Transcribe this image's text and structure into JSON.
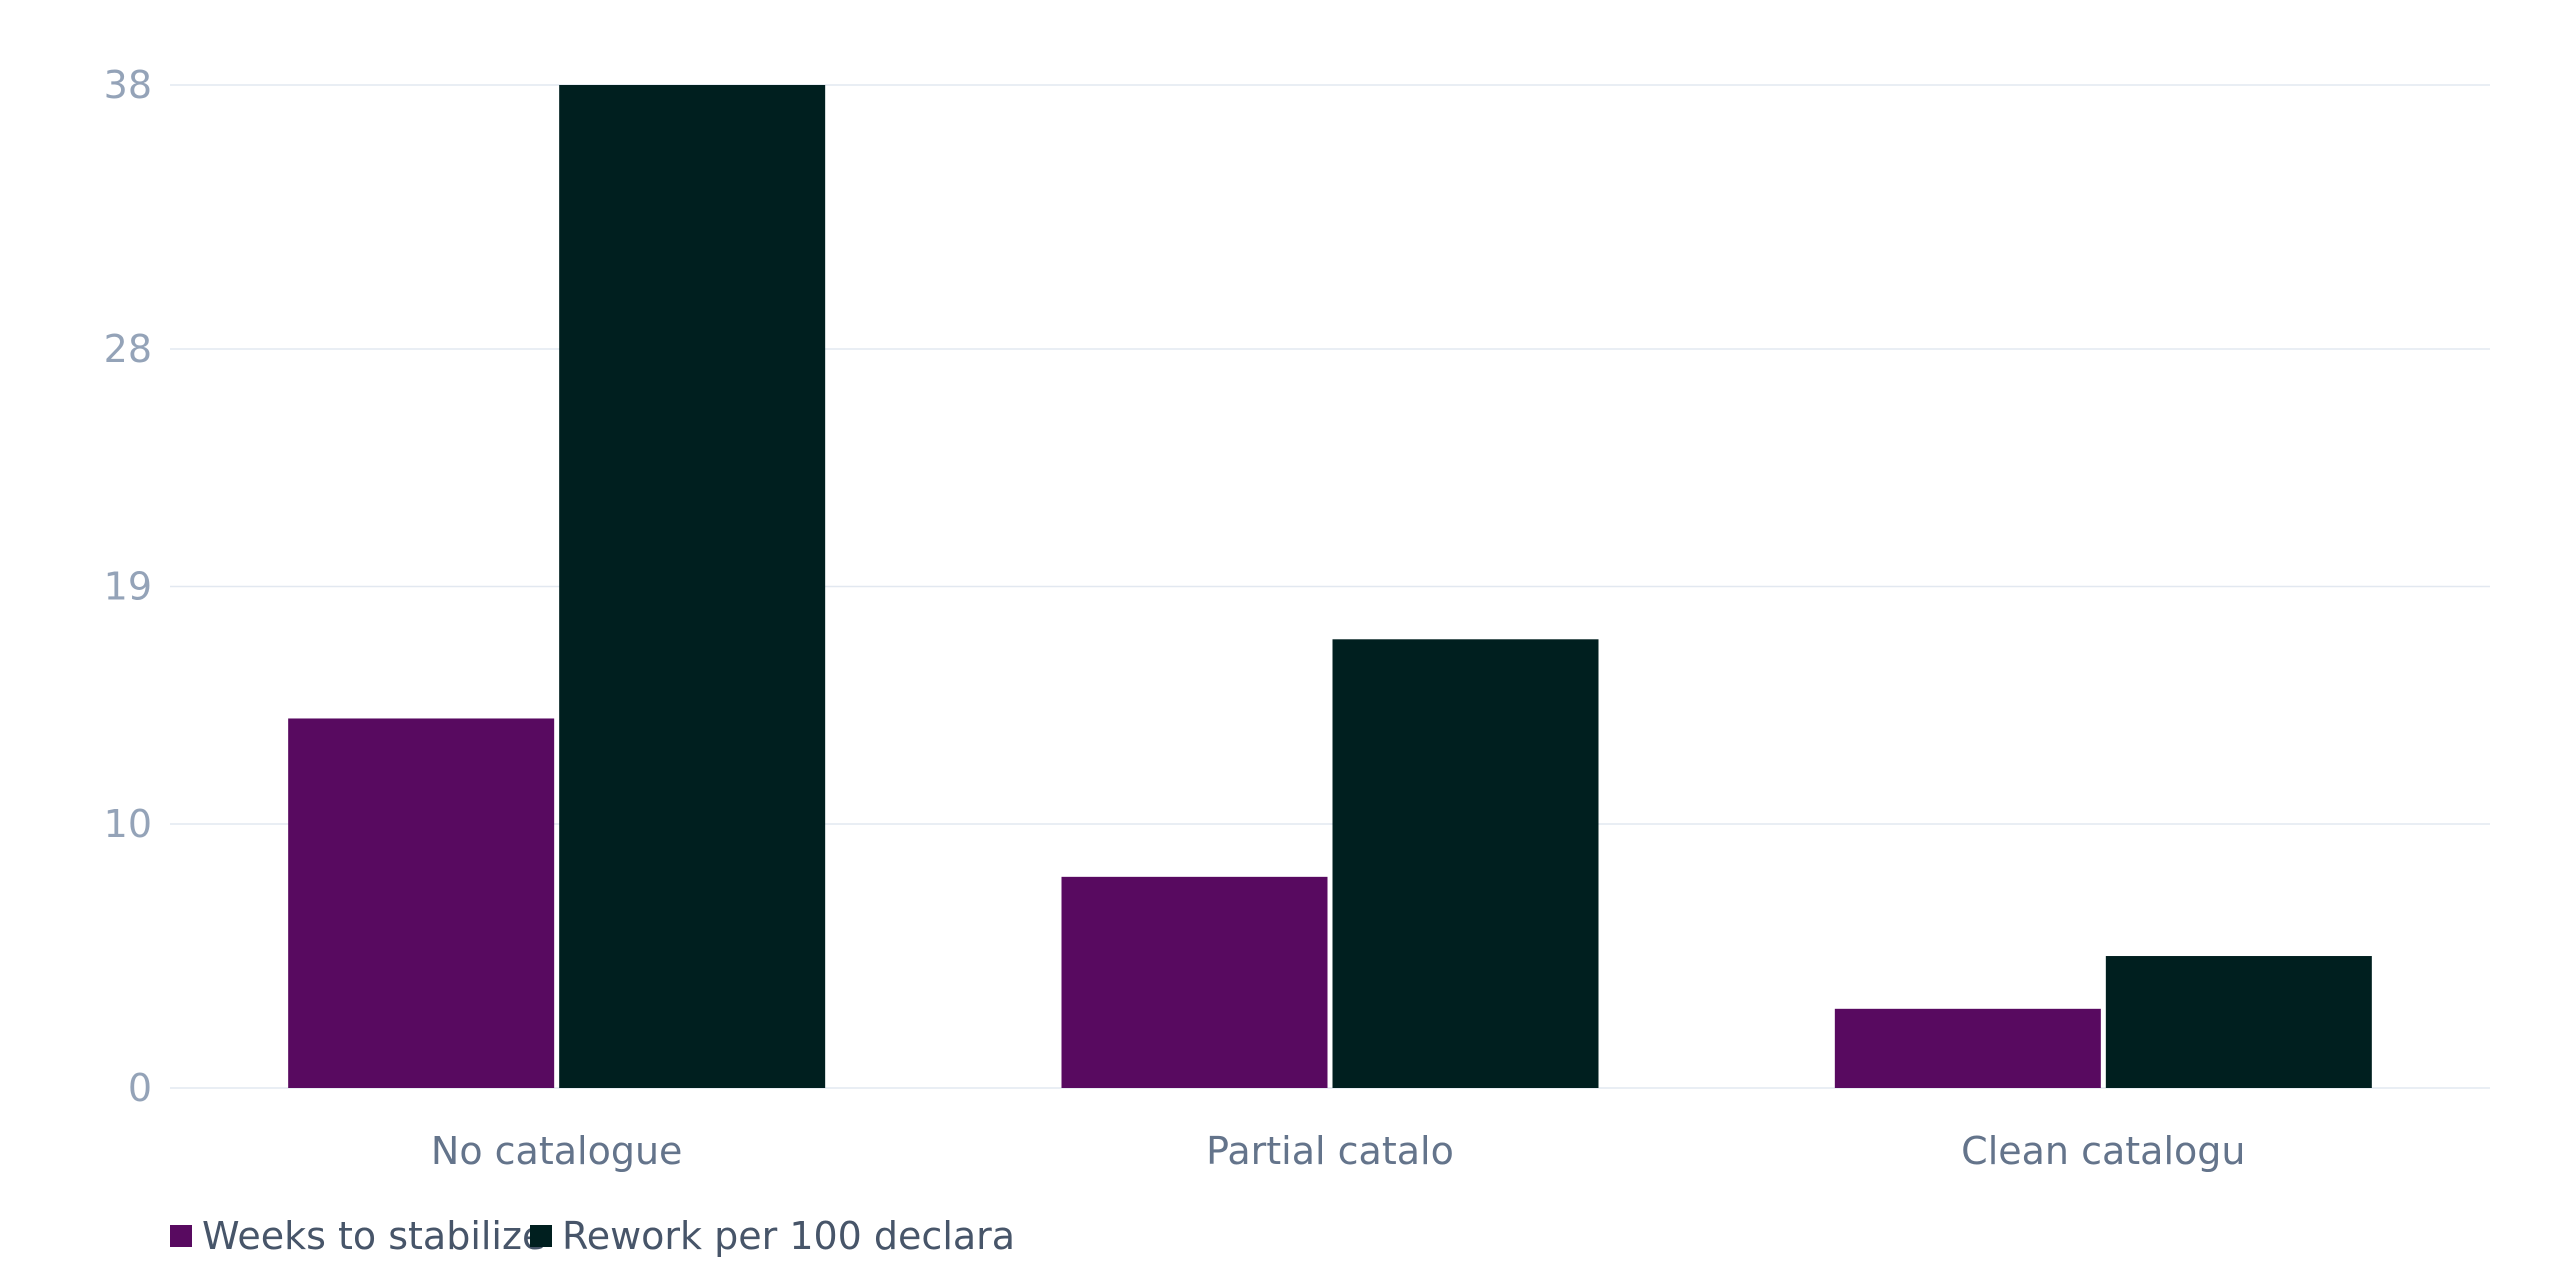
{
  "colors": {
    "series_1": "#580a60",
    "series_2": "#001f1f",
    "grid": "#e2e8f0",
    "y_tick": "#94a3b8",
    "x_tick": "#64748b",
    "legend_text": "#475569"
  },
  "chart_data": {
    "type": "bar",
    "categories": [
      "No catalogue",
      "Partial catalo",
      "Clean catalogu"
    ],
    "series": [
      {
        "name": "Weeks to stabilize",
        "values": [
          14,
          8,
          3
        ]
      },
      {
        "name": "Rework per 100 declara",
        "values": [
          38,
          17,
          5
        ]
      }
    ],
    "y_ticks": [
      "0",
      "10",
      "19",
      "28",
      "38"
    ],
    "ylim": [
      0,
      38
    ],
    "grid": true,
    "legend_position": "bottom-left"
  },
  "legend": {
    "items": [
      "Weeks to stabilize",
      "Rework per 100 declara"
    ]
  }
}
